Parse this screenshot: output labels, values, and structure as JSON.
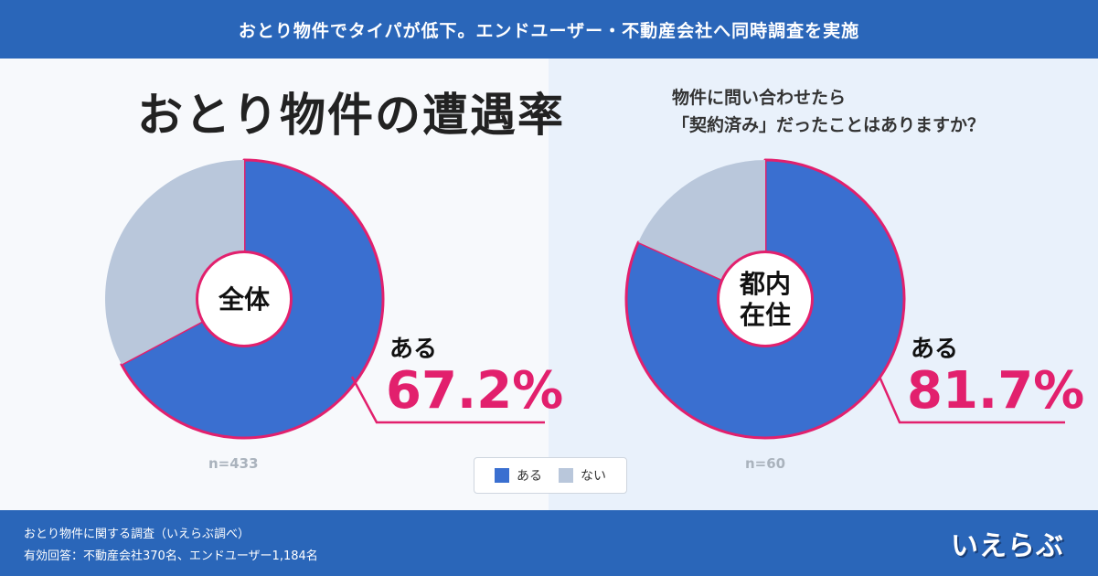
{
  "header": {
    "title": "おとり物件でタイパが低下。エンドユーザー・不動産会社へ同時調査を実施"
  },
  "main_title": "おとり物件の遭遇率",
  "question": {
    "line1": "物件に問い合わせたら",
    "line2": "「契約済み」だったことはありますか？"
  },
  "colors": {
    "yes": "#3a6fd0",
    "no": "#b9c7db",
    "accent": "#e2206d",
    "bar": "#2a66b9"
  },
  "chart_data": [
    {
      "type": "pie",
      "center_label": "全体",
      "categories": [
        "ある",
        "ない"
      ],
      "values": [
        67.2,
        32.8
      ],
      "callout_label": "ある",
      "callout_value": "67.2%",
      "n": "n=433"
    },
    {
      "type": "pie",
      "center_label": "都内\n在住",
      "categories": [
        "ある",
        "ない"
      ],
      "values": [
        81.7,
        18.3
      ],
      "callout_label": "ある",
      "callout_value": "81.7%",
      "n": "n=60"
    }
  ],
  "legend": {
    "yes": "ある",
    "no": "ない"
  },
  "footer": {
    "source_line1": "おとり物件に関する調査（いえらぶ調べ）",
    "source_line2": "有効回答：不動産会社370名、エンドユーザー1,184名",
    "logo": "いえらぶ"
  }
}
